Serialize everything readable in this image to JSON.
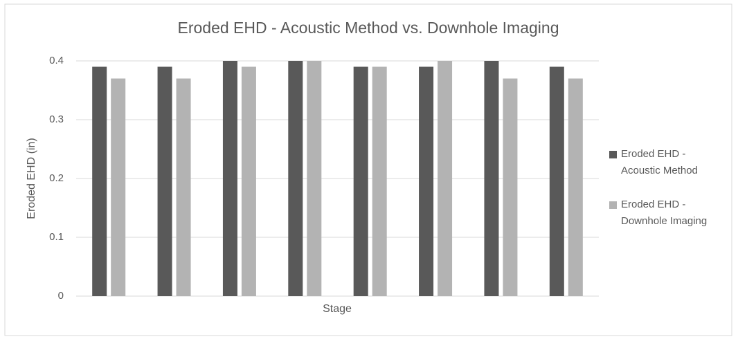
{
  "chart_data": {
    "type": "bar",
    "title": "Eroded EHD - Acoustic Method vs. Downhole Imaging",
    "x_label": "Stage",
    "y_label": "Eroded EHD (in)",
    "categories": [
      null,
      null,
      null,
      null,
      null,
      null,
      null,
      null
    ],
    "series": [
      {
        "name": "Eroded EHD - Acoustic Method",
        "color": "#595959",
        "values": [
          0.39,
          0.39,
          0.4,
          0.4,
          0.39,
          0.39,
          0.4,
          0.39
        ]
      },
      {
        "name": "Eroded EHD - Downhole Imaging",
        "color": "#b3b3b3",
        "values": [
          0.37,
          0.37,
          0.39,
          0.4,
          0.39,
          0.4,
          0.37,
          0.37
        ]
      }
    ],
    "ylim": [
      0,
      0.4
    ],
    "yticks": [
      0,
      0.1,
      0.2,
      0.3,
      0.4
    ],
    "grid": true,
    "legend": "right"
  }
}
